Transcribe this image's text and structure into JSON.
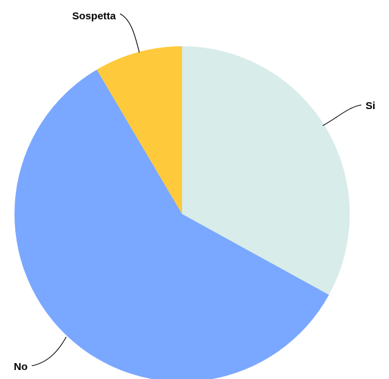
{
  "chart_data": {
    "type": "pie",
    "categories": [
      "Si",
      "No",
      "Sospetta"
    ],
    "values": [
      33,
      58.5,
      8.5
    ],
    "colors": [
      "#d8ecea",
      "#7aa7ff",
      "#ffc93c"
    ],
    "title": "",
    "legend": "none",
    "label_style": "outside-with-leader-lines"
  }
}
